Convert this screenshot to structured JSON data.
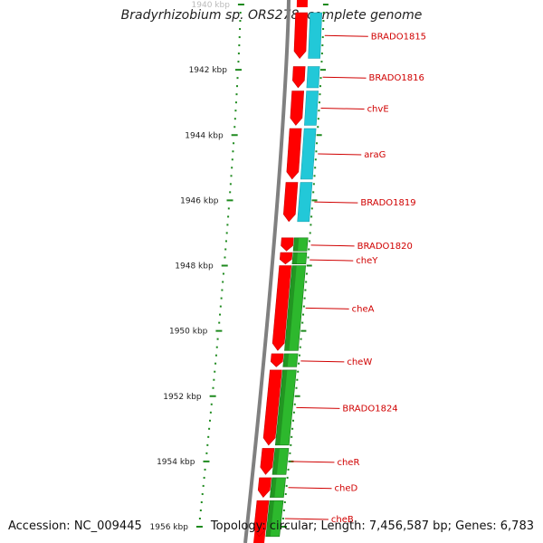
{
  "title": "Bradyrhizobium sp. ORS278, complete genome",
  "accession_text": "Accession: NC_009445",
  "summary_text": "Topology: circular; Length: 7,456,587 bp; Genes: 6,783",
  "colors": {
    "backbone": "#808080",
    "gene_red": "#ff0000",
    "gene_red_dark": "#cc0000",
    "cyan": "#22c8d8",
    "green": "#2db82d",
    "green_dark": "#1a7a1a",
    "label": "#d00000",
    "tick": "#1e8a1e",
    "axis_text": "#222222"
  },
  "kbp_labels": [
    "1940 kbp",
    "1942 kbp",
    "1944 kbp",
    "1946 kbp",
    "1948 kbp",
    "1950 kbp",
    "1952 kbp",
    "1954 kbp",
    "1956 kbp"
  ],
  "genes": [
    {
      "name": "BRADO1815",
      "group": "cyan",
      "start": 1940.25,
      "end": 1941.65
    },
    {
      "name": "BRADO1816",
      "group": "cyan",
      "start": 1941.9,
      "end": 1942.55
    },
    {
      "name": "chvE",
      "group": "cyan",
      "start": 1942.65,
      "end": 1943.7
    },
    {
      "name": "araG",
      "group": "cyan",
      "start": 1943.8,
      "end": 1945.35
    },
    {
      "name": "BRADO1819",
      "group": "cyan",
      "start": 1945.45,
      "end": 1946.65
    },
    {
      "name": "BRADO1820",
      "group": "green",
      "start": 1947.15,
      "end": 1947.55
    },
    {
      "name": "cheY",
      "group": "green",
      "start": 1947.6,
      "end": 1947.95
    },
    {
      "name": "cheA",
      "group": "green",
      "start": 1948.0,
      "end": 1950.6
    },
    {
      "name": "cheW",
      "group": "green",
      "start": 1950.7,
      "end": 1951.1
    },
    {
      "name": "BRADO1824",
      "group": "green",
      "start": 1951.2,
      "end": 1953.5
    },
    {
      "name": "cheR",
      "group": "green",
      "start": 1953.6,
      "end": 1954.4
    },
    {
      "name": "cheD",
      "group": "green",
      "start": 1954.5,
      "end": 1955.1
    },
    {
      "name": "cheB",
      "group": "green",
      "start": 1955.2,
      "end": 1956.3
    }
  ]
}
